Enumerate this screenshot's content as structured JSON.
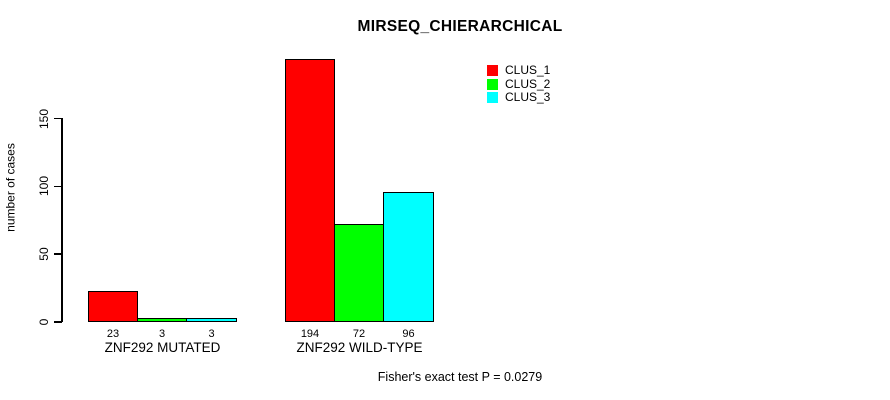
{
  "chart_data": {
    "type": "bar",
    "title": "MIRSEQ_CHIERARCHICAL",
    "ylabel": "number of cases",
    "xlabel": "",
    "ylim": [
      0,
      150
    ],
    "yticks": [
      0,
      50,
      100,
      150
    ],
    "grid": false,
    "legend_position": "top-right",
    "categories": [
      "ZNF292 MUTATED",
      "ZNF292 WILD-TYPE"
    ],
    "series": [
      {
        "name": "CLUS_1",
        "color": "#FF0000",
        "values": [
          23,
          194
        ]
      },
      {
        "name": "CLUS_2",
        "color": "#00FF00",
        "values": [
          3,
          72
        ]
      },
      {
        "name": "CLUS_3",
        "color": "#00FFFF",
        "values": [
          3,
          96
        ]
      }
    ],
    "bar_value_labels_shown": true,
    "annotation": "Fisher's exact test P = 0.0279"
  }
}
